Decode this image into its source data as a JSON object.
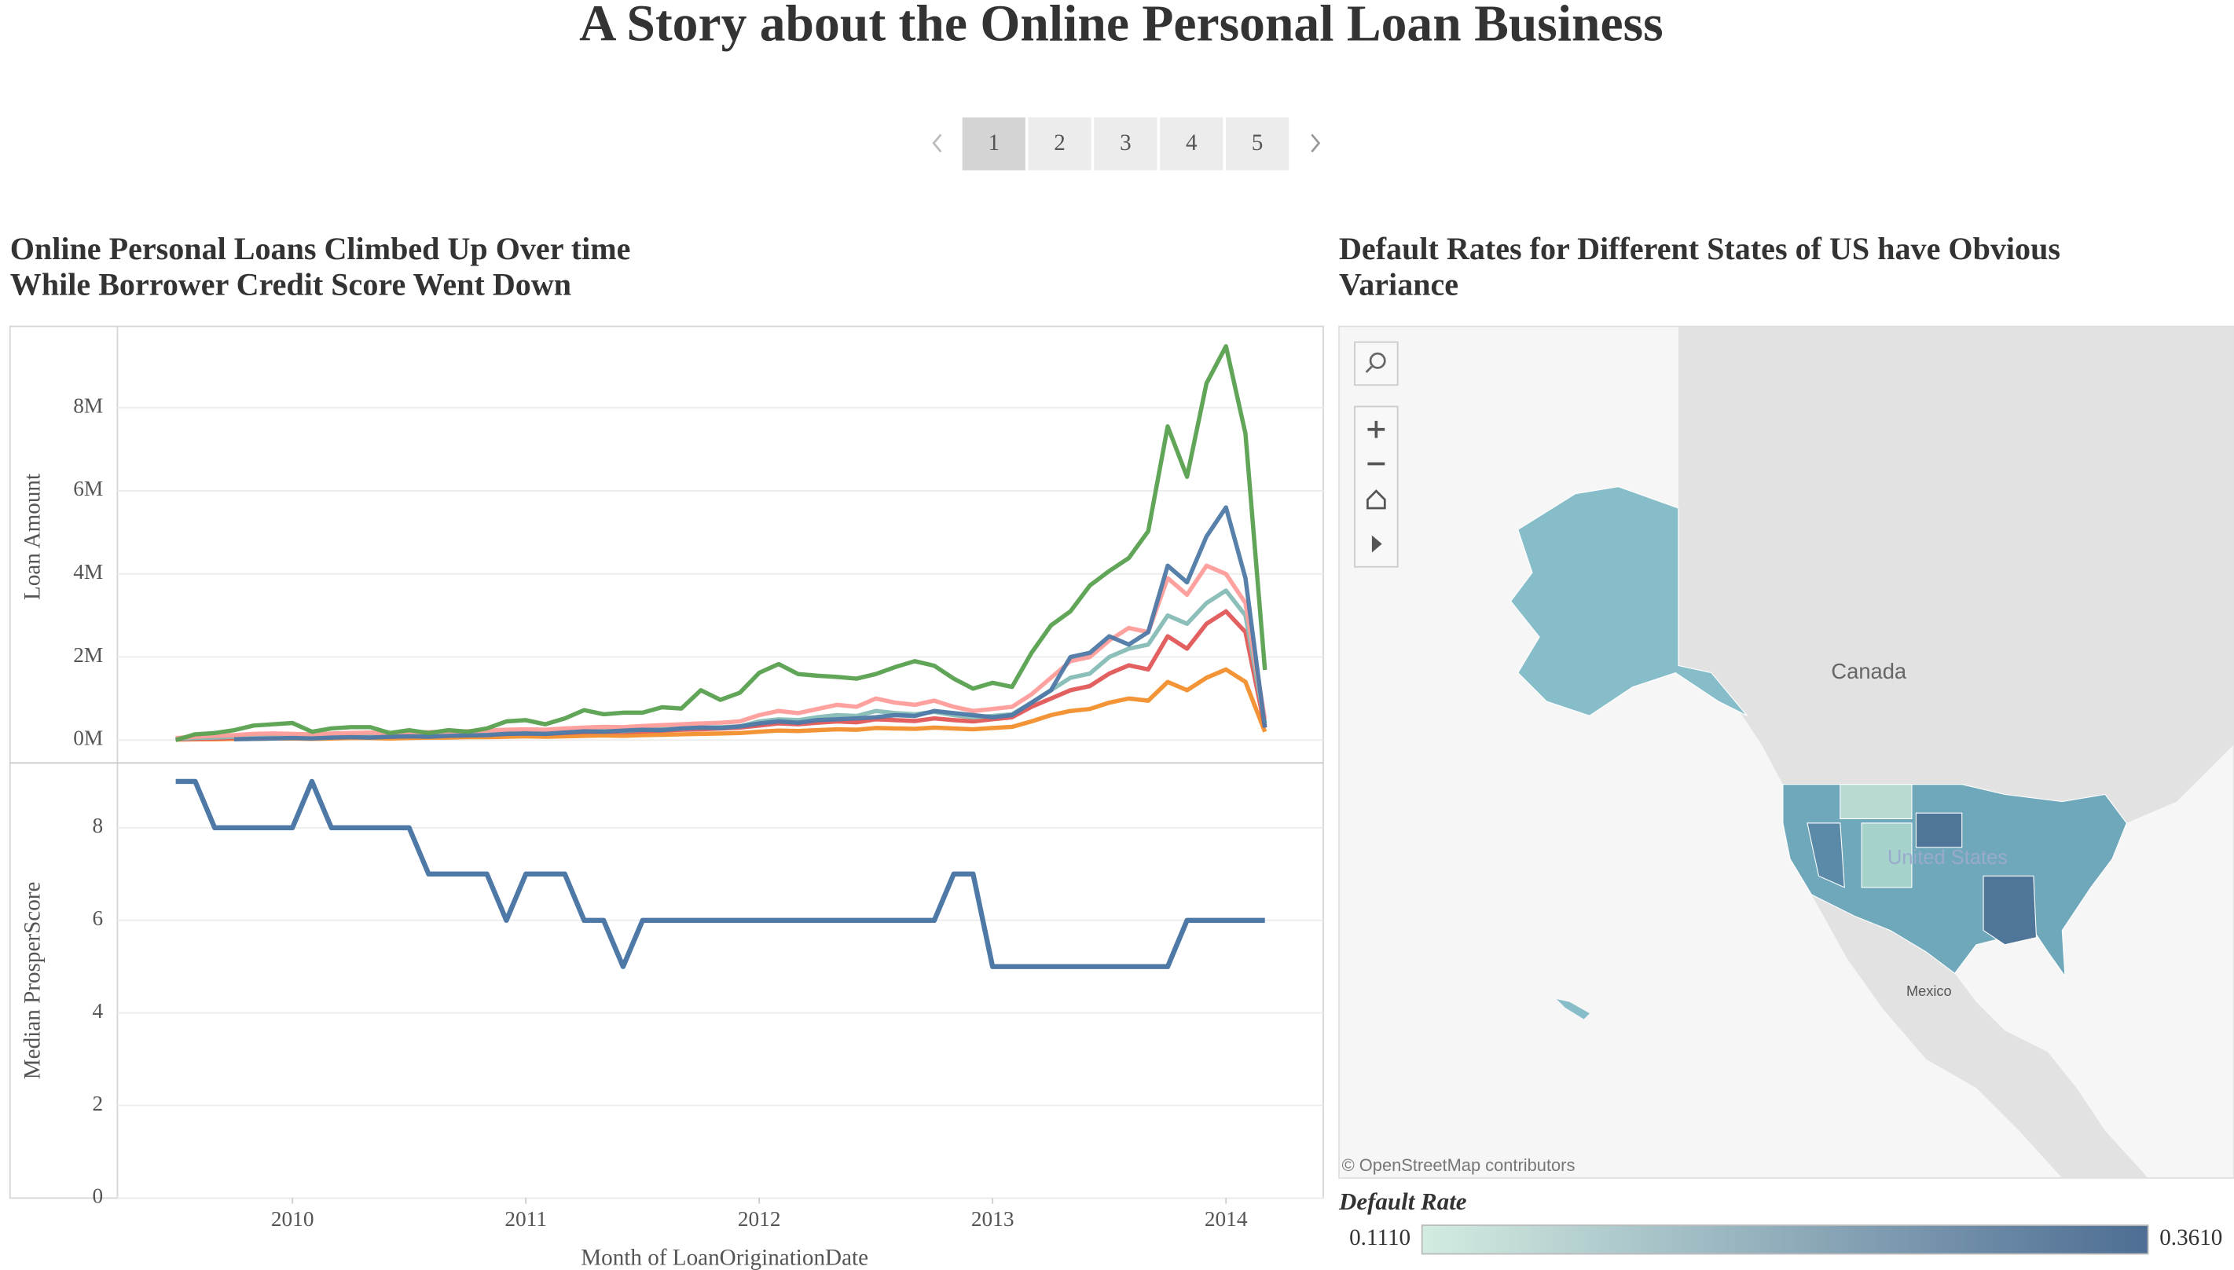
{
  "title": "A Story about the Online Personal Loan Business",
  "pager": {
    "pages": [
      1,
      2,
      3,
      4,
      5
    ],
    "active": 1
  },
  "chart_data": [
    {
      "type": "line",
      "title": [
        "Online Personal Loans Climbed Up Over time",
        "While Borrower Credit Score Went Down"
      ],
      "ylabel": "Loan Amount",
      "x": [
        "2009-07",
        "2009-08",
        "2009-09",
        "2009-10",
        "2009-11",
        "2009-12",
        "2010-01",
        "2010-02",
        "2010-03",
        "2010-04",
        "2010-05",
        "2010-06",
        "2010-07",
        "2010-08",
        "2010-09",
        "2010-10",
        "2010-11",
        "2010-12",
        "2011-01",
        "2011-02",
        "2011-03",
        "2011-04",
        "2011-05",
        "2011-06",
        "2011-07",
        "2011-08",
        "2011-09",
        "2011-10",
        "2011-11",
        "2011-12",
        "2012-01",
        "2012-02",
        "2012-03",
        "2012-04",
        "2012-05",
        "2012-06",
        "2012-07",
        "2012-08",
        "2012-09",
        "2012-10",
        "2012-11",
        "2012-12",
        "2013-01",
        "2013-02",
        "2013-03",
        "2013-04",
        "2013-05",
        "2013-06",
        "2013-07",
        "2013-08",
        "2013-09",
        "2013-10",
        "2013-11",
        "2013-12",
        "2014-01",
        "2014-02",
        "2014-03"
      ],
      "series": [
        {
          "color": "#f28e2b",
          "values": [
            10000,
            20000,
            20000,
            30000,
            30000,
            40000,
            40000,
            30000,
            40000,
            50000,
            50000,
            40000,
            50000,
            60000,
            60000,
            70000,
            70000,
            80000,
            90000,
            80000,
            90000,
            100000,
            110000,
            100000,
            120000,
            130000,
            140000,
            150000,
            160000,
            170000,
            200000,
            230000,
            220000,
            240000,
            260000,
            250000,
            290000,
            280000,
            270000,
            300000,
            280000,
            260000,
            290000,
            320000,
            450000,
            600000,
            700000,
            750000,
            900000,
            1000000,
            950000,
            1400000,
            1200000,
            1500000,
            1700000,
            1400000,
            200000
          ]
        },
        {
          "color": "#e15759",
          "values": [
            20000,
            30000,
            40000,
            50000,
            60000,
            70000,
            70000,
            60000,
            80000,
            90000,
            90000,
            80000,
            90000,
            100000,
            110000,
            120000,
            130000,
            150000,
            160000,
            150000,
            170000,
            190000,
            200000,
            190000,
            210000,
            230000,
            250000,
            260000,
            280000,
            300000,
            350000,
            400000,
            380000,
            420000,
            450000,
            430000,
            500000,
            480000,
            460000,
            520000,
            480000,
            450000,
            500000,
            550000,
            800000,
            1000000,
            1200000,
            1300000,
            1600000,
            1800000,
            1700000,
            2500000,
            2200000,
            2800000,
            3100000,
            2600000,
            300000
          ]
        },
        {
          "color": "#86bcb6",
          "values": [
            30000,
            50000,
            60000,
            80000,
            90000,
            100000,
            100000,
            90000,
            110000,
            120000,
            120000,
            110000,
            120000,
            130000,
            140000,
            150000,
            160000,
            180000,
            190000,
            180000,
            200000,
            220000,
            230000,
            220000,
            250000,
            260000,
            280000,
            300000,
            310000,
            330000,
            450000,
            500000,
            480000,
            550000,
            600000,
            580000,
            700000,
            650000,
            620000,
            680000,
            600000,
            550000,
            580000,
            620000,
            900000,
            1200000,
            1500000,
            1600000,
            2000000,
            2200000,
            2300000,
            3000000,
            2800000,
            3300000,
            3600000,
            3000000,
            400000
          ]
        },
        {
          "color": "#ff9d9a",
          "values": [
            50000,
            80000,
            100000,
            120000,
            150000,
            160000,
            150000,
            140000,
            160000,
            170000,
            180000,
            160000,
            170000,
            190000,
            200000,
            210000,
            230000,
            250000,
            260000,
            250000,
            280000,
            300000,
            320000,
            310000,
            340000,
            360000,
            380000,
            400000,
            420000,
            450000,
            600000,
            700000,
            650000,
            750000,
            850000,
            800000,
            1000000,
            900000,
            850000,
            950000,
            800000,
            700000,
            750000,
            800000,
            1100000,
            1500000,
            1900000,
            2000000,
            2400000,
            2700000,
            2600000,
            3900000,
            3500000,
            4200000,
            4000000,
            3300000,
            500000
          ]
        },
        {
          "color": "#4e79a7",
          "values": [
            null,
            null,
            null,
            20000,
            30000,
            40000,
            50000,
            40000,
            60000,
            70000,
            60000,
            80000,
            90000,
            80000,
            100000,
            110000,
            120000,
            150000,
            160000,
            150000,
            180000,
            210000,
            200000,
            230000,
            250000,
            240000,
            280000,
            300000,
            290000,
            330000,
            400000,
            450000,
            420000,
            480000,
            500000,
            520000,
            550000,
            600000,
            580000,
            700000,
            650000,
            600000,
            550000,
            600000,
            900000,
            1200000,
            2000000,
            2100000,
            2500000,
            2300000,
            2600000,
            4200000,
            3800000,
            4900000,
            5600000,
            3900000,
            300000
          ]
        },
        {
          "color": "#59a14f",
          "values": [
            0,
            140000,
            170000,
            240000,
            350000,
            380000,
            410000,
            200000,
            280000,
            310000,
            310000,
            170000,
            240000,
            170000,
            240000,
            200000,
            280000,
            450000,
            480000,
            380000,
            520000,
            720000,
            620000,
            660000,
            660000,
            790000,
            760000,
            1200000,
            970000,
            1140000,
            1620000,
            1830000,
            1590000,
            1550000,
            1520000,
            1480000,
            1590000,
            1760000,
            1900000,
            1790000,
            1480000,
            1240000,
            1380000,
            1280000,
            2100000,
            2760000,
            3100000,
            3720000,
            4070000,
            4380000,
            5030000,
            7550000,
            6340000,
            8590000,
            9480000,
            7380000,
            1690000
          ]
        }
      ],
      "xlim": [
        "2009-04",
        "2014-06"
      ],
      "ylim": [
        -550000,
        9960000
      ],
      "yticks": [
        {
          "value": 0,
          "label": "0M"
        },
        {
          "value": 2000000,
          "label": "2M"
        },
        {
          "value": 4000000,
          "label": "4M"
        },
        {
          "value": 6000000,
          "label": "6M"
        },
        {
          "value": 8000000,
          "label": "8M"
        }
      ],
      "grid": true
    },
    {
      "type": "line",
      "ylabel": "Median ProsperScore",
      "xlabel": "Month of LoanOriginationDate",
      "x": [
        "2009-07",
        "2009-08",
        "2009-09",
        "2009-10",
        "2009-11",
        "2009-12",
        "2010-01",
        "2010-02",
        "2010-03",
        "2010-04",
        "2010-05",
        "2010-06",
        "2010-07",
        "2010-08",
        "2010-09",
        "2010-10",
        "2010-11",
        "2010-12",
        "2011-01",
        "2011-02",
        "2011-03",
        "2011-04",
        "2011-05",
        "2011-06",
        "2011-07",
        "2011-08",
        "2011-09",
        "2011-10",
        "2011-11",
        "2011-12",
        "2012-01",
        "2012-02",
        "2012-03",
        "2012-04",
        "2012-05",
        "2012-06",
        "2012-07",
        "2012-08",
        "2012-09",
        "2012-10",
        "2012-11",
        "2012-12",
        "2013-01",
        "2013-02",
        "2013-03",
        "2013-04",
        "2013-05",
        "2013-06",
        "2013-07",
        "2013-08",
        "2013-09",
        "2013-10",
        "2013-11",
        "2013-12",
        "2014-01",
        "2014-02",
        "2014-03"
      ],
      "values": [
        9,
        9,
        8,
        8,
        8,
        8,
        8,
        9,
        8,
        8,
        8,
        8,
        8,
        7,
        7,
        7,
        7,
        6,
        7,
        7,
        7,
        6,
        6,
        5,
        6,
        6,
        6,
        6,
        6,
        6,
        6,
        6,
        6,
        6,
        6,
        6,
        6,
        6,
        6,
        6,
        7,
        7,
        5,
        5,
        5,
        5,
        5,
        5,
        5,
        5,
        5,
        5,
        6,
        6,
        6,
        6,
        6
      ],
      "color": "#4e79a7",
      "xlim": [
        "2009-04",
        "2014-06"
      ],
      "xticks": [
        2010,
        2011,
        2012,
        2013,
        2014
      ],
      "ylim": [
        0,
        9.4
      ],
      "yticks": [
        0,
        2,
        4,
        6,
        8
      ],
      "grid": true
    },
    {
      "type": "map",
      "title": [
        "Default Rates for Different States of US have Obvious",
        "Variance"
      ],
      "places": [
        "Canada",
        "United States",
        "Mexico"
      ],
      "attribution": "© OpenStreetMap contributors",
      "legend_title": "Default Rate",
      "colorscale": [
        {
          "value": 0.111,
          "label": "0.1110",
          "color": "#d3ece1"
        },
        {
          "value": 0.361,
          "label": "0.3610",
          "color": "#4d6d94"
        }
      ]
    }
  ]
}
